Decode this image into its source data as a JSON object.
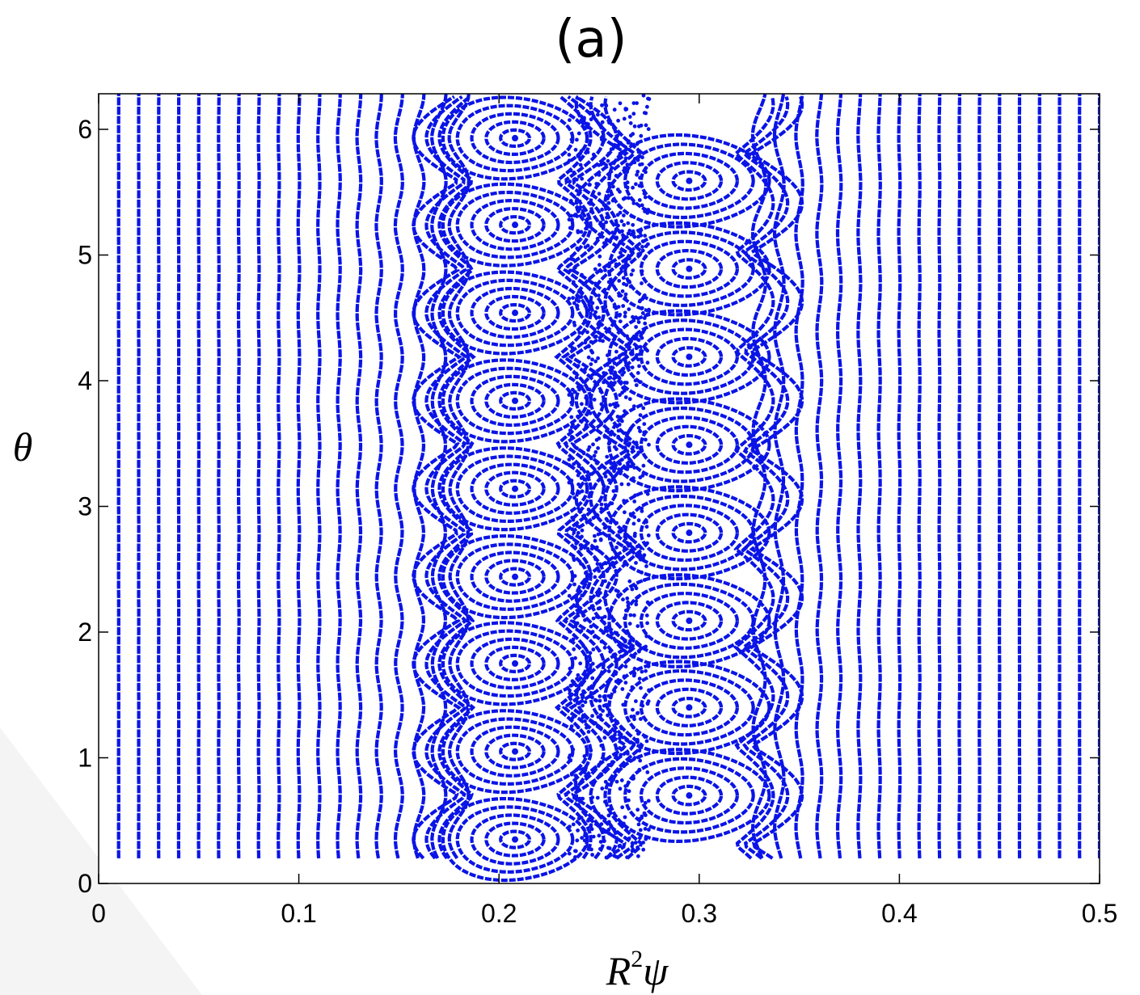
{
  "panel_label": "(a)",
  "colors": {
    "trajectory": "#0a14e6",
    "axis": "#000000",
    "background": "#ffffff",
    "watermark": "#f3f3f3"
  },
  "chart_data": {
    "type": "scatter",
    "title": "(a)",
    "xlabel": "R²ψ",
    "xlabel_base": "R",
    "xlabel_sup": "2",
    "xlabel_tail": "ψ",
    "ylabel": "θ",
    "xlim": [
      0,
      0.5
    ],
    "ylim": [
      0,
      6.283
    ],
    "xticks": [
      0,
      0.1,
      0.2,
      0.3,
      0.4,
      0.5
    ],
    "xtick_labels": [
      "0",
      "0.1",
      "0.2",
      "0.3",
      "0.4",
      "0.5"
    ],
    "yticks": [
      0,
      1,
      2,
      3,
      4,
      5,
      6
    ],
    "ytick_labels": [
      "0",
      "1",
      "2",
      "3",
      "4",
      "5",
      "6"
    ],
    "grid": false,
    "legend": "none",
    "series": [
      {
        "kind": "island_chain",
        "x_center": 0.208,
        "o_points_theta": [
          0.35,
          1.05,
          1.75,
          2.44,
          3.14,
          3.84,
          4.54,
          5.24,
          5.93
        ]
      },
      {
        "kind": "island_chain",
        "x_center": 0.295,
        "o_points_theta": [
          0.7,
          1.4,
          2.09,
          2.79,
          3.49,
          4.19,
          4.89,
          5.59
        ]
      },
      {
        "kind": "regular_surfaces",
        "x_values": [
          0.01,
          0.02,
          0.03,
          0.04,
          0.05,
          0.06,
          0.07,
          0.08,
          0.09,
          0.1,
          0.11,
          0.12,
          0.13,
          0.14,
          0.15,
          0.16,
          0.17,
          0.18,
          0.33,
          0.34,
          0.35,
          0.36,
          0.37,
          0.38,
          0.39,
          0.4,
          0.41,
          0.42,
          0.43,
          0.44,
          0.45,
          0.46,
          0.47,
          0.48,
          0.49,
          0.5
        ]
      }
    ]
  }
}
